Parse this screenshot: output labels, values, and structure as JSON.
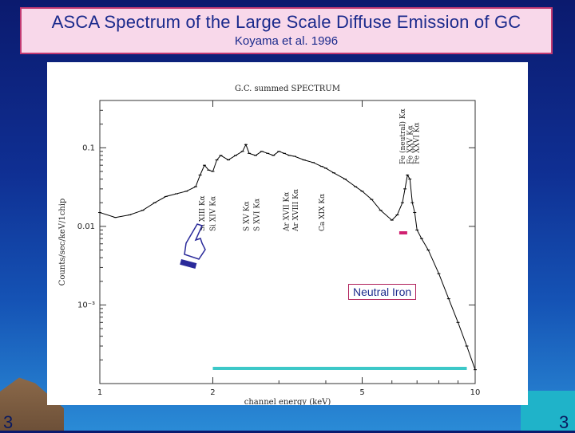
{
  "slide": {
    "title": "ASCA Spectrum of the Large Scale Diffuse Emission of  GC",
    "subtitle": "Koyama et al. 1996",
    "page_number_left": "3",
    "page_number_right": "3",
    "background_color": "#0f2f93",
    "title_box_color": "#f8d8ea",
    "title_border_color": "#c23a72"
  },
  "annotation": {
    "label": "Neutral Iron",
    "marker_color": "#d02070",
    "range_bar_color": "#3cc8c8",
    "pointer_icon": "pointing-hand-icon"
  },
  "chart_data": {
    "type": "line",
    "title": "G.C. summed SPECTRUM",
    "xlabel": "channel energy (keV)",
    "ylabel": "Counts/sec/keV/1chip",
    "xscale": "log",
    "yscale": "log",
    "xlim": [
      1,
      10
    ],
    "ylim": [
      0.0001,
      0.4
    ],
    "x_ticks": [
      {
        "value": 1,
        "label": "1"
      },
      {
        "value": 2,
        "label": "2"
      },
      {
        "value": 5,
        "label": "5"
      },
      {
        "value": 10,
        "label": "10"
      }
    ],
    "y_ticks": [
      {
        "value": 0.1,
        "label": "0.1"
      },
      {
        "value": 0.01,
        "label": "0.01"
      },
      {
        "value": 0.001,
        "label": "10⁻³"
      }
    ],
    "series": [
      {
        "x": [
          1.0,
          1.1,
          1.2,
          1.3,
          1.4,
          1.5,
          1.6,
          1.7,
          1.8,
          1.85,
          1.9,
          1.95,
          2.0,
          2.05,
          2.1,
          2.2,
          2.3,
          2.4,
          2.45,
          2.5,
          2.6,
          2.7,
          2.8,
          2.9,
          3.0,
          3.1,
          3.2,
          3.3,
          3.5,
          3.7,
          3.9,
          4.0,
          4.2,
          4.5,
          4.8,
          5.0,
          5.3,
          5.6,
          6.0,
          6.2,
          6.4,
          6.5,
          6.6,
          6.7,
          6.8,
          6.9,
          7.0,
          7.2,
          7.5,
          8.0,
          8.5,
          9.0,
          9.5,
          10.0
        ],
        "y": [
          0.015,
          0.013,
          0.014,
          0.016,
          0.02,
          0.024,
          0.026,
          0.028,
          0.032,
          0.045,
          0.06,
          0.052,
          0.05,
          0.07,
          0.08,
          0.07,
          0.08,
          0.09,
          0.11,
          0.085,
          0.08,
          0.09,
          0.085,
          0.08,
          0.09,
          0.085,
          0.08,
          0.078,
          0.07,
          0.065,
          0.058,
          0.055,
          0.048,
          0.04,
          0.032,
          0.028,
          0.022,
          0.016,
          0.012,
          0.014,
          0.02,
          0.03,
          0.045,
          0.04,
          0.02,
          0.015,
          0.009,
          0.007,
          0.005,
          0.0025,
          0.0012,
          0.0006,
          0.0003,
          0.00015
        ]
      }
    ],
    "line_annotations": [
      {
        "energy": 1.87,
        "label": "Si XIII Kα"
      },
      {
        "energy": 2.0,
        "label": "Si XIV Kα"
      },
      {
        "energy": 2.46,
        "label": "S XV Kα"
      },
      {
        "energy": 2.62,
        "label": "S XVI Kα"
      },
      {
        "energy": 3.14,
        "label": "Ar XVII Kα"
      },
      {
        "energy": 3.32,
        "label": "Ar XVIII Kα"
      },
      {
        "energy": 3.9,
        "label": "Ca XIX Kα"
      },
      {
        "energy": 6.4,
        "label": "Fe (neutral) Kα"
      },
      {
        "energy": 6.7,
        "label": "Fe XXV Kα"
      },
      {
        "energy": 6.97,
        "label": "Fe XXVI Kα"
      }
    ]
  }
}
